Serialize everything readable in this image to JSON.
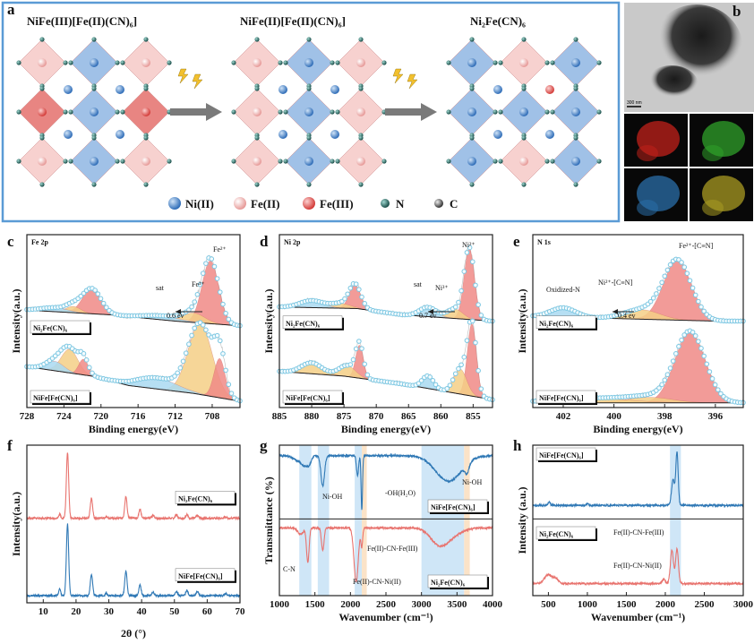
{
  "panel_letters": [
    "a",
    "b",
    "c",
    "d",
    "e",
    "f",
    "g",
    "h"
  ],
  "panel_a": {
    "titles": [
      "NiFe(III)[Fe(II)(CN)₆]",
      "NiFe(II)[Fe(II)(CN)₆]",
      "Ni₂Fe(CN)₆"
    ],
    "legend": [
      "Ni(II)",
      "Fe(II)",
      "Fe(III)",
      "N",
      "C"
    ],
    "legend_colors": [
      "#3b78c4",
      "#f3b3b0",
      "#e0524e",
      "#1f5e57",
      "#555555"
    ],
    "border_color": "#5b9bd5"
  },
  "panel_b": {
    "scale_bar": "300 nm",
    "eds_colors": [
      "#c0201a",
      "#2fa02a",
      "#2a6ea8",
      "#a89a22"
    ]
  },
  "colors": {
    "red": "#f08a86",
    "yellow": "#f4cf86",
    "blue": "#a9d9f1",
    "marker": "#7cc7e2",
    "line_blue": "#2f78b5",
    "line_red": "#e8736e",
    "band_blue": "#cfe6f7",
    "band_orange": "#fbe3c8"
  },
  "chart_data": [
    {
      "id": "c",
      "type": "line",
      "title": "Fe 2p",
      "xlabel": "Binding energy(eV)",
      "ylabel": "Intensity(a.u.)",
      "xlim": [
        728,
        705
      ],
      "ylim": [
        0,
        11
      ],
      "xticks": [
        728,
        724,
        720,
        716,
        712,
        708
      ],
      "series": [
        {
          "name": "Ni₂Fe(CN)₆",
          "offset": 5.2,
          "background": [
            [
              728,
              1.0
            ],
            [
              719,
              0.7
            ],
            [
              712,
              0.3
            ],
            [
              705,
              0.0
            ]
          ],
          "components": [
            {
              "center": 708.2,
              "height": 4.0,
              "width": 0.9,
              "color": "red"
            },
            {
              "center": 710.0,
              "height": 0.6,
              "width": 1.2,
              "color": "yellow"
            },
            {
              "center": 721.0,
              "height": 1.6,
              "width": 1.0,
              "color": "red"
            },
            {
              "center": 723.0,
              "height": 0.4,
              "width": 0.8,
              "color": "yellow"
            },
            {
              "center": 713.5,
              "height": 0.25,
              "width": 2.0,
              "color": "blue"
            },
            {
              "center": 725.0,
              "height": 0.25,
              "width": 1.5,
              "color": "blue"
            }
          ]
        },
        {
          "name": "NiFe[Fe(CN)₆]",
          "offset": 0.4,
          "background": [
            [
              728,
              2.2
            ],
            [
              721,
              1.6
            ],
            [
              717,
              1.0
            ],
            [
              710,
              0.5
            ],
            [
              705,
              0.0
            ]
          ],
          "components": [
            {
              "center": 709.3,
              "height": 4.5,
              "width": 1.3,
              "color": "yellow"
            },
            {
              "center": 707.2,
              "height": 2.5,
              "width": 0.6,
              "color": "red"
            },
            {
              "center": 723.4,
              "height": 1.5,
              "width": 0.9,
              "color": "yellow"
            },
            {
              "center": 721.9,
              "height": 1.0,
              "width": 0.5,
              "color": "red"
            },
            {
              "center": 725.0,
              "height": 0.6,
              "width": 1.0,
              "color": "blue"
            },
            {
              "center": 714.0,
              "height": 0.7,
              "width": 2.2,
              "color": "blue"
            }
          ]
        }
      ],
      "annotations": [
        "Fe²⁺",
        "Fe³⁺",
        "sat",
        "0.6 ev"
      ]
    },
    {
      "id": "d",
      "type": "line",
      "title": "Ni 2p",
      "xlabel": "Binding energy(eV)",
      "ylabel": "Intensity(a.u.)",
      "xlim": [
        885,
        852
      ],
      "ylim": [
        0,
        11
      ],
      "xticks": [
        885,
        880,
        875,
        870,
        865,
        860,
        855
      ],
      "series": [
        {
          "name": "Ni₂Fe(CN)₆",
          "offset": 5.5,
          "background": [
            [
              885,
              0.9
            ],
            [
              873,
              0.8
            ],
            [
              866,
              0.4
            ],
            [
              852,
              0.0
            ]
          ],
          "components": [
            {
              "center": 855.6,
              "height": 4.5,
              "width": 0.8,
              "color": "red"
            },
            {
              "center": 857.8,
              "height": 0.6,
              "width": 1.2,
              "color": "yellow"
            },
            {
              "center": 862.0,
              "height": 0.6,
              "width": 1.3,
              "color": "blue"
            },
            {
              "center": 873.3,
              "height": 1.5,
              "width": 0.9,
              "color": "red"
            },
            {
              "center": 875.5,
              "height": 0.3,
              "width": 1.5,
              "color": "yellow"
            },
            {
              "center": 880.0,
              "height": 0.45,
              "width": 1.8,
              "color": "blue"
            }
          ]
        },
        {
          "name": "NiFe[Fe(CN)₆]",
          "offset": 0.5,
          "background": [
            [
              885,
              1.8
            ],
            [
              875,
              1.5
            ],
            [
              866,
              1.0
            ],
            [
              852,
              0.0
            ]
          ],
          "components": [
            {
              "center": 855.2,
              "height": 4.6,
              "width": 0.7,
              "color": "red"
            },
            {
              "center": 857.0,
              "height": 1.6,
              "width": 1.0,
              "color": "yellow"
            },
            {
              "center": 862.0,
              "height": 0.8,
              "width": 0.9,
              "color": "blue"
            },
            {
              "center": 872.6,
              "height": 2.1,
              "width": 0.6,
              "color": "red"
            },
            {
              "center": 874.5,
              "height": 0.7,
              "width": 1.3,
              "color": "yellow"
            },
            {
              "center": 880.0,
              "height": 0.7,
              "width": 1.6,
              "color": "yellow"
            }
          ]
        }
      ],
      "annotations": [
        "Ni²⁺",
        "Ni³⁺",
        "sat",
        "0.7 ev"
      ]
    },
    {
      "id": "e",
      "type": "line",
      "title": "N 1s",
      "xlabel": "Binding energy(eV)",
      "ylabel": "Intensity(a.u.)",
      "xlim": [
        403.2,
        394.9
      ],
      "ylim": [
        0,
        11
      ],
      "xticks": [
        402,
        400,
        398,
        396
      ],
      "series": [
        {
          "name": "Ni₂Fe(CN)₆",
          "offset": 5.5,
          "background": [
            [
              403.2,
              0.3
            ],
            [
              396,
              0.0
            ],
            [
              394.9,
              0.0
            ]
          ],
          "components": [
            {
              "center": 397.5,
              "height": 3.8,
              "width": 0.55,
              "color": "red"
            },
            {
              "center": 398.9,
              "height": 0.6,
              "width": 0.7,
              "color": "yellow"
            },
            {
              "center": 402.0,
              "height": 0.6,
              "width": 0.5,
              "color": "blue"
            }
          ]
        },
        {
          "name": "NiFe[Fe(CN)₆]",
          "offset": 0.3,
          "background": [
            [
              403.2,
              0.0
            ],
            [
              394.9,
              0.0
            ]
          ],
          "components": [
            {
              "center": 397.0,
              "height": 4.5,
              "width": 0.6,
              "color": "red"
            },
            {
              "center": 398.6,
              "height": 0.35,
              "width": 0.9,
              "color": "yellow"
            },
            {
              "center": 401.0,
              "height": 0.3,
              "width": 1.5,
              "color": "yellow"
            }
          ]
        }
      ],
      "annotations": [
        "Fe²⁺-[C≡N]",
        "Ni²⁺-[C≡N]",
        "Oxidized-N",
        "0.4 ev"
      ]
    },
    {
      "id": "f",
      "type": "line",
      "title": "",
      "xlabel": "2θ (°)",
      "ylabel": "Intensity(a.u.)",
      "xlim": [
        5,
        70
      ],
      "ylim": [
        0,
        11
      ],
      "xticks": [
        10,
        20,
        30,
        40,
        50,
        60,
        70
      ],
      "series": [
        {
          "name": "Ni₂Fe(CN)₆",
          "color": "line_red",
          "offset": 5.9,
          "peaks": [
            [
              17.4,
              4.6,
              0.35
            ],
            [
              24.7,
              1.4,
              0.35
            ],
            [
              35.2,
              1.5,
              0.35
            ],
            [
              39.5,
              0.6,
              0.35
            ],
            [
              15.0,
              0.3,
              0.3
            ],
            [
              43.5,
              0.2,
              0.35
            ],
            [
              50.6,
              0.25,
              0.35
            ],
            [
              53.8,
              0.25,
              0.35
            ],
            [
              57.0,
              0.2,
              0.35
            ],
            [
              29.2,
              0.1,
              0.3
            ],
            [
              65.6,
              0.1,
              0.35
            ]
          ]
        },
        {
          "name": "NiFe[Fe(CN)₆]",
          "color": "line_blue",
          "offset": 0.5,
          "peaks": [
            [
              17.4,
              5.0,
              0.35
            ],
            [
              24.7,
              1.5,
              0.35
            ],
            [
              35.2,
              1.7,
              0.35
            ],
            [
              39.5,
              0.75,
              0.35
            ],
            [
              15.0,
              0.45,
              0.3
            ],
            [
              43.5,
              0.25,
              0.35
            ],
            [
              50.6,
              0.3,
              0.35
            ],
            [
              53.8,
              0.35,
              0.35
            ],
            [
              57.0,
              0.3,
              0.35
            ],
            [
              29.2,
              0.15,
              0.3
            ],
            [
              65.6,
              0.15,
              0.35
            ]
          ]
        }
      ]
    },
    {
      "id": "g",
      "type": "line",
      "title": "",
      "xlabel": "Wavenumber (cm⁻¹)",
      "ylabel": "Transmittance (%)",
      "xlim": [
        1000,
        4000
      ],
      "ylim": [
        0,
        10
      ],
      "xticks": [
        1000,
        1500,
        2000,
        2500,
        3000,
        3500,
        4000
      ],
      "bands": [
        [
          1280,
          1450,
          "band_blue"
        ],
        [
          1540,
          1700,
          "band_blue"
        ],
        [
          2060,
          2160,
          "band_blue"
        ],
        [
          2160,
          2230,
          "band_orange"
        ],
        [
          3000,
          3600,
          "band_blue"
        ],
        [
          3600,
          3680,
          "band_orange"
        ]
      ],
      "series": [
        {
          "name": "NiFe[Fe(CN)₆]",
          "color": "line_blue",
          "offset": 9.3,
          "dips": [
            [
              1250,
              0.3,
              60
            ],
            [
              1350,
              0.6,
              40
            ],
            [
              1420,
              0.5,
              30
            ],
            [
              1610,
              2.0,
              25
            ],
            [
              2100,
              1.3,
              15
            ],
            [
              2160,
              3.6,
              10
            ],
            [
              3380,
              1.7,
              180
            ],
            [
              3640,
              0.6,
              30
            ]
          ]
        },
        {
          "name": "Ni₂Fe(CN)₆",
          "color": "line_red",
          "offset": 4.5,
          "dips": [
            [
              1300,
              0.4,
              40
            ],
            [
              1400,
              2.3,
              18
            ],
            [
              1610,
              1.5,
              18
            ],
            [
              2080,
              3.6,
              30
            ],
            [
              2160,
              1.2,
              12
            ],
            [
              3240,
              0.9,
              120
            ],
            [
              3400,
              0.5,
              150
            ]
          ]
        }
      ],
      "annotations": [
        "Ni-OH",
        "-OH(H₂O)",
        "Ni-OH",
        "C-N",
        "Fe(II)-CN-Fe(III)",
        "Fe(II)-CN-Ni(II)"
      ]
    },
    {
      "id": "h",
      "type": "line",
      "title": "",
      "xlabel": "Wavenumber (cm⁻¹)",
      "ylabel": "Intensity (a.u.)",
      "xlim": [
        300,
        3000
      ],
      "ylim": [
        0,
        10
      ],
      "xticks": [
        500,
        1000,
        1500,
        2000,
        2500,
        3000
      ],
      "bands": [
        [
          2060,
          2200,
          "band_blue"
        ]
      ],
      "series": [
        {
          "name": "NiFe[Fe(CN)₆]",
          "color": "line_blue",
          "offset": 6.0,
          "peaks": [
            [
              2150,
              3.5,
              15
            ],
            [
              2100,
              1.7,
              20
            ],
            [
              510,
              0.2,
              15
            ],
            [
              1000,
              0.15,
              10
            ]
          ]
        },
        {
          "name": "Ni₂Fe(CN)₆",
          "color": "line_red",
          "offset": 0.8,
          "peaks": [
            [
              2085,
              2.2,
              20
            ],
            [
              2150,
              2.3,
              18
            ],
            [
              500,
              0.6,
              50
            ],
            [
              600,
              0.3,
              30
            ],
            [
              1980,
              0.3,
              20
            ]
          ]
        }
      ],
      "annotations": [
        "Fe(II)-CN-Fe(III)",
        "Fe(II)-CN-Ni(II)"
      ]
    }
  ]
}
